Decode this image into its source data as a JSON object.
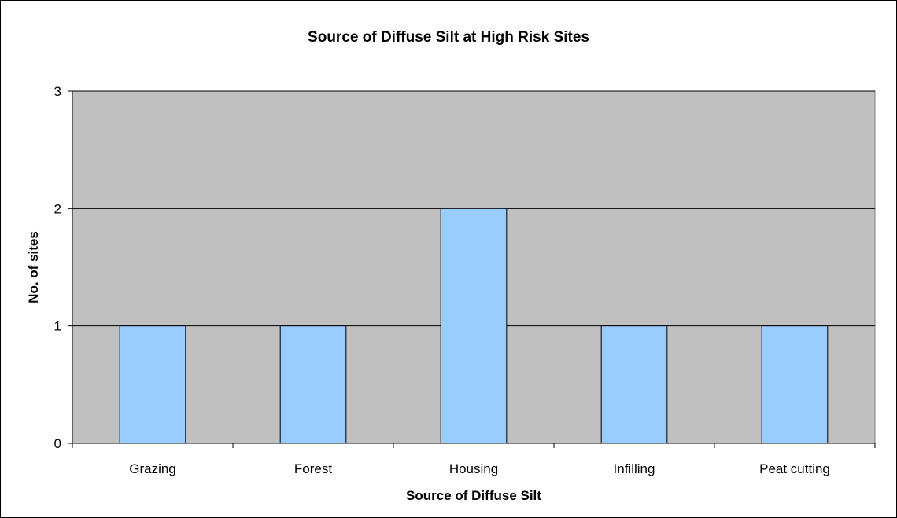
{
  "chart_data": {
    "type": "bar",
    "title": "Source of Diffuse Silt at High Risk Sites",
    "xlabel": "Source of Diffuse Silt",
    "ylabel": "No. of sites",
    "categories": [
      "Grazing",
      "Forest",
      "Housing",
      "Infilling",
      "Peat cutting"
    ],
    "values": [
      1,
      1,
      2,
      1,
      1
    ],
    "ylim": [
      0,
      3
    ],
    "yticks": [
      0,
      1,
      2,
      3
    ],
    "grid": "horizontal",
    "legend": "none",
    "colors": {
      "bar_fill": "#99ccff",
      "plot_background": "#c0c0c0",
      "bar_border": "#000000"
    }
  }
}
